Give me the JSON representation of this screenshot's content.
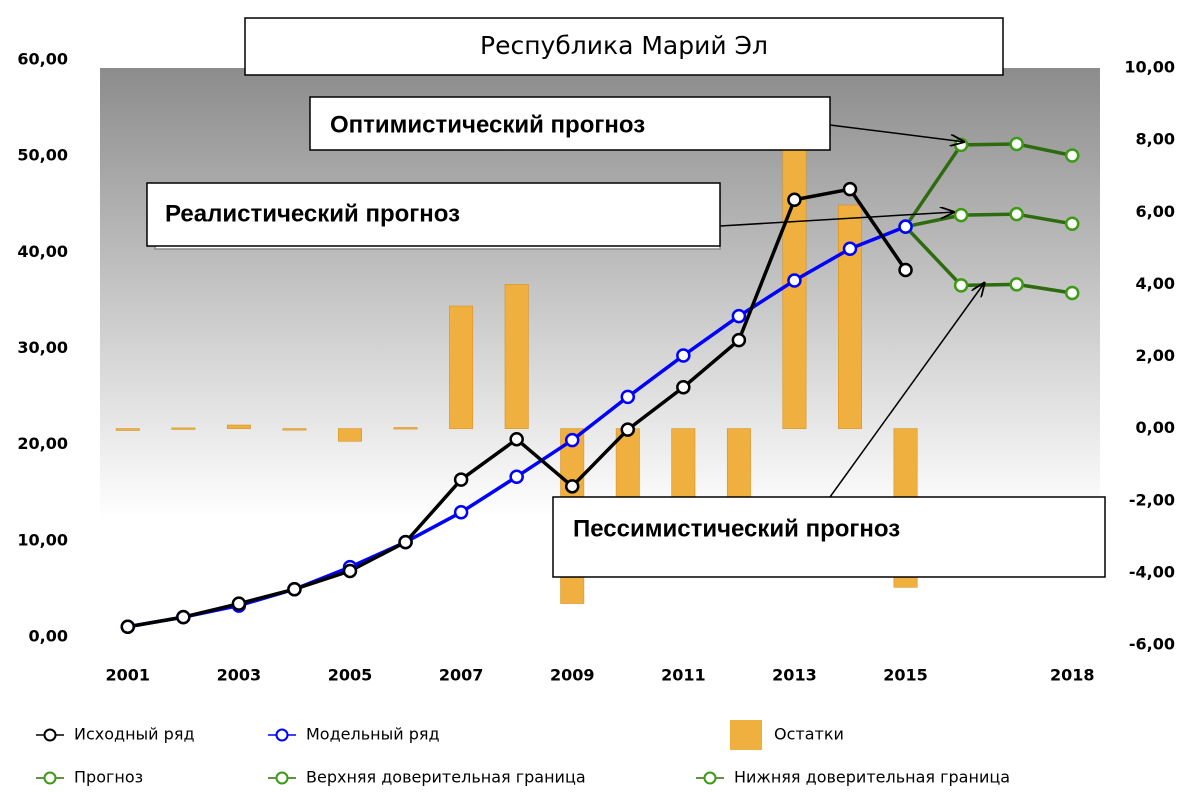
{
  "chart_data": {
    "type": "line",
    "title": "Республика Марий Эл",
    "annotations": [
      "Оптимистический  прогноз",
      "Реалистический прогноз",
      "Пессимистический  прогноз"
    ],
    "x": [
      2001,
      2002,
      2003,
      2004,
      2005,
      2006,
      2007,
      2008,
      2009,
      2010,
      2011,
      2012,
      2013,
      2014,
      2015,
      2016,
      2017,
      2018
    ],
    "xlim": [
      2000.5,
      2018.5
    ],
    "xticks": [
      2001,
      2003,
      2005,
      2007,
      2009,
      2011,
      2013,
      2015,
      2018
    ],
    "ylim": [
      0,
      60
    ],
    "yticks": [
      {
        "value": 0,
        "label": "0,00"
      },
      {
        "value": 10,
        "label": "10,00"
      },
      {
        "value": 20,
        "label": "20,00"
      },
      {
        "value": 30,
        "label": "30,00"
      },
      {
        "value": 40,
        "label": "40,00"
      },
      {
        "value": 50,
        "label": "50,00"
      },
      {
        "value": 60,
        "label": "60,00"
      }
    ],
    "y2lim": [
      -6,
      10
    ],
    "y2ticks": [
      {
        "value": -6,
        "label": "-6,00"
      },
      {
        "value": -4,
        "label": "-4,00"
      },
      {
        "value": -2,
        "label": "-2,00"
      },
      {
        "value": 0,
        "label": "0,00"
      },
      {
        "value": 2,
        "label": "2,00"
      },
      {
        "value": 4,
        "label": "4,00"
      },
      {
        "value": 6,
        "label": "6,00"
      },
      {
        "value": 8,
        "label": "8,00"
      },
      {
        "value": 10,
        "label": "10,00"
      }
    ],
    "series": [
      {
        "name": "Исходный ряд",
        "type": "line",
        "color": "#000000",
        "values": [
          1.9,
          2.9,
          4.3,
          5.8,
          7.7,
          10.7,
          17.2,
          21.4,
          16.5,
          22.4,
          26.8,
          31.7,
          46.3,
          47.4,
          39.0,
          null,
          null,
          null
        ]
      },
      {
        "name": "Модельный ряд",
        "type": "line",
        "color": "#0000ff",
        "values": [
          1.9,
          2.9,
          4.1,
          5.8,
          8.1,
          10.7,
          13.8,
          17.5,
          21.3,
          25.8,
          30.1,
          34.2,
          37.9,
          41.2,
          43.5,
          null,
          null,
          null
        ]
      },
      {
        "name": "Остатки",
        "type": "bar",
        "axis": "y2",
        "color": "#f0b040",
        "values": [
          -0.05,
          0.02,
          0.1,
          -0.03,
          -0.35,
          0.03,
          3.4,
          4.0,
          -4.85,
          -3.4,
          -3.3,
          -2.5,
          8.4,
          6.2,
          -4.4,
          null,
          null,
          null
        ]
      },
      {
        "name": "Прогноз",
        "type": "line",
        "color": "#2e6b0e",
        "values": [
          null,
          null,
          null,
          null,
          null,
          null,
          null,
          null,
          null,
          null,
          null,
          null,
          null,
          null,
          43.5,
          44.7,
          44.8,
          43.8
        ]
      },
      {
        "name": "Верхняя доверительная граница",
        "type": "line",
        "color": "#2e6b0e",
        "values": [
          null,
          null,
          null,
          null,
          null,
          null,
          null,
          null,
          null,
          null,
          null,
          null,
          null,
          null,
          43.5,
          52.0,
          52.1,
          50.9
        ]
      },
      {
        "name": "Нижняя доверительная граница",
        "type": "line",
        "color": "#2e6b0e",
        "values": [
          null,
          null,
          null,
          null,
          null,
          null,
          null,
          null,
          null,
          null,
          null,
          null,
          null,
          null,
          43.5,
          37.4,
          37.5,
          36.6
        ]
      }
    ]
  }
}
